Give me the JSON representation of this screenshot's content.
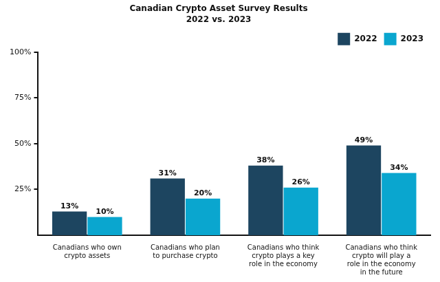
{
  "chart_data": {
    "type": "bar",
    "title": "Canadian Crypto Asset Survey Results",
    "subtitle": "2022 vs. 2023",
    "categories": [
      "Canadians who own crypto assets",
      "Canadians who plan to purchase crypto",
      "Canadians who think crypto plays a key role in the economy",
      "Canadians who think crypto will play a role in the economy in the future"
    ],
    "series": [
      {
        "name": "2022",
        "color": "#1d4560",
        "values": [
          13,
          31,
          38,
          49
        ],
        "value_labels": [
          "13%",
          "31%",
          "38%",
          "49%"
        ]
      },
      {
        "name": "2023",
        "color": "#0aa6cf",
        "values": [
          10,
          20,
          26,
          34
        ],
        "value_labels": [
          "10%",
          "20%",
          "26%",
          "34%"
        ]
      }
    ],
    "ylim": [
      0,
      100
    ],
    "yticks": [
      {
        "value": 25,
        "label": "25%"
      },
      {
        "value": 50,
        "label": "50%"
      },
      {
        "value": 75,
        "label": "75%"
      },
      {
        "value": 100,
        "label": "100%"
      }
    ],
    "grid": false,
    "legend": "top-right",
    "data_labels": true
  }
}
